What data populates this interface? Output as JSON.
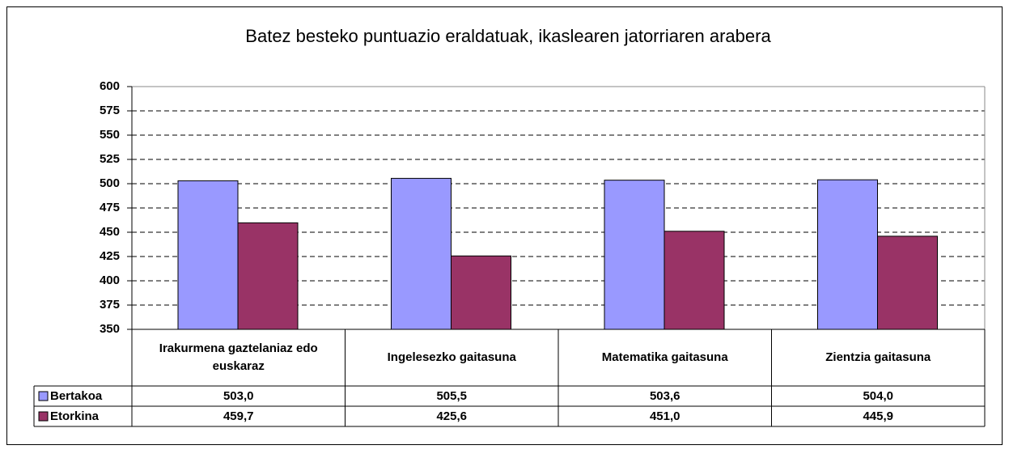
{
  "chart_data": {
    "type": "bar",
    "title": "Batez besteko puntuazio eraldatuak, ikaslearen jatorriaren arabera",
    "categories": [
      "Irakurmena gaztelaniaz edo euskaraz",
      "Ingelesezko gaitasuna",
      "Matematika gaitasuna",
      "Zientzia gaitasuna"
    ],
    "series": [
      {
        "name": "Bertakoa",
        "color": "#9999ff",
        "values": [
          503.0,
          505.5,
          503.6,
          504.0
        ],
        "value_labels": [
          "503,0",
          "505,5",
          "503,6",
          "504,0"
        ]
      },
      {
        "name": "Etorkina",
        "color": "#993366",
        "values": [
          459.7,
          425.6,
          451.0,
          445.9
        ],
        "value_labels": [
          "459,7",
          "425,6",
          "451,0",
          "445,9"
        ]
      }
    ],
    "ylim": [
      350,
      600
    ],
    "yticks": [
      350,
      375,
      400,
      425,
      450,
      475,
      500,
      525,
      550,
      575,
      600
    ],
    "grid": true
  }
}
